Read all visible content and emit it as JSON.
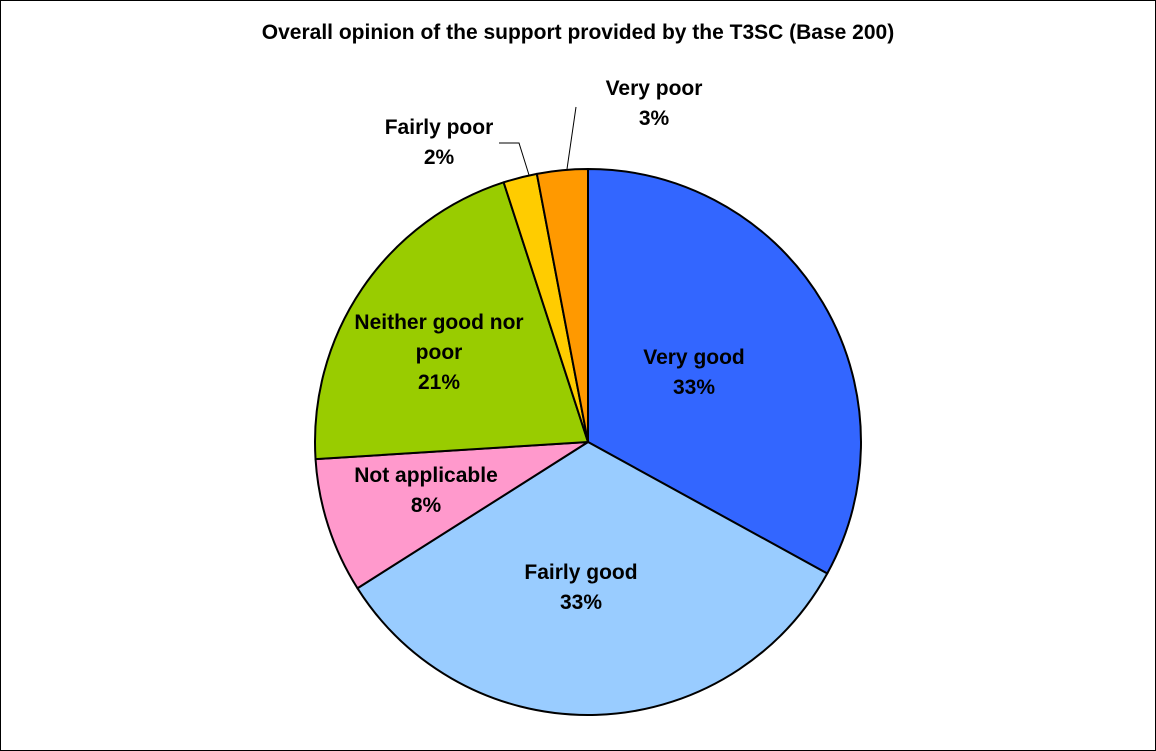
{
  "chart_data": {
    "type": "pie",
    "title": "Overall opinion of the support provided by the T3SC (Base 200)",
    "categories": [
      "Very good",
      "Fairly good",
      "Not applicable",
      "Neither good nor poor",
      "Fairly poor",
      "Very poor"
    ],
    "values": [
      33,
      33,
      8,
      21,
      2,
      3
    ],
    "value_labels": [
      "33%",
      "33%",
      "8%",
      "21%",
      "2%",
      "3%"
    ],
    "colors": [
      "#3366FF",
      "#99CCFF",
      "#FF99CC",
      "#99CC00",
      "#FFCC00",
      "#FF9900"
    ],
    "label_lines": [
      [
        "Very good",
        "33%"
      ],
      [
        "Fairly good",
        "33%"
      ],
      [
        "Not applicable",
        "8%"
      ],
      [
        "Neither good nor",
        "poor",
        "21%"
      ],
      [
        "Fairly poor",
        "2%"
      ],
      [
        "Very poor",
        "3%"
      ]
    ],
    "legend": "none",
    "start": "12 o'clock",
    "direction": "clockwise"
  }
}
